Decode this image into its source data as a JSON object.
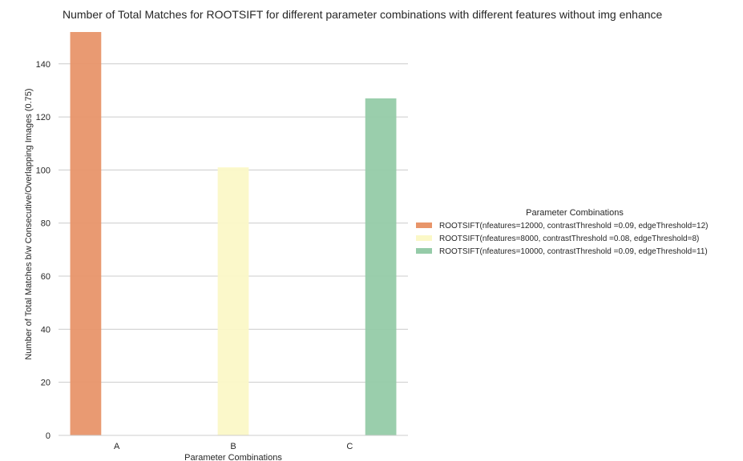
{
  "chart_data": {
    "type": "bar",
    "title": "Number of Total Matches for ROOTSIFT for different parameter combinations with different features without img enhance",
    "xlabel": "Parameter Combinations",
    "ylabel": "Number of Total Matches b/w Consecutive/Overlapping Images (0.75)",
    "categories": [
      "A",
      "B",
      "C"
    ],
    "ylim": [
      0,
      152
    ],
    "yticks": [
      0,
      20,
      40,
      60,
      80,
      100,
      120,
      140
    ],
    "grid": true,
    "legend": {
      "title": "Parameter Combinations",
      "placement": "center-right"
    },
    "series": [
      {
        "name": "ROOTSIFT(nfeatures=12000, contrastThreshold =0.09, edgeThreshold=12)",
        "values": [
          152,
          0,
          0
        ],
        "color": "#e8956a"
      },
      {
        "name": "ROOTSIFT(nfeatures=8000, contrastThreshold =0.08, edgeThreshold=8)",
        "values": [
          0,
          101,
          0
        ],
        "color": "#fbf8c7"
      },
      {
        "name": "ROOTSIFT(nfeatures=10000, contrastThreshold =0.09, edgeThreshold=11)",
        "values": [
          0,
          0,
          127
        ],
        "color": "#95cba8"
      }
    ]
  }
}
